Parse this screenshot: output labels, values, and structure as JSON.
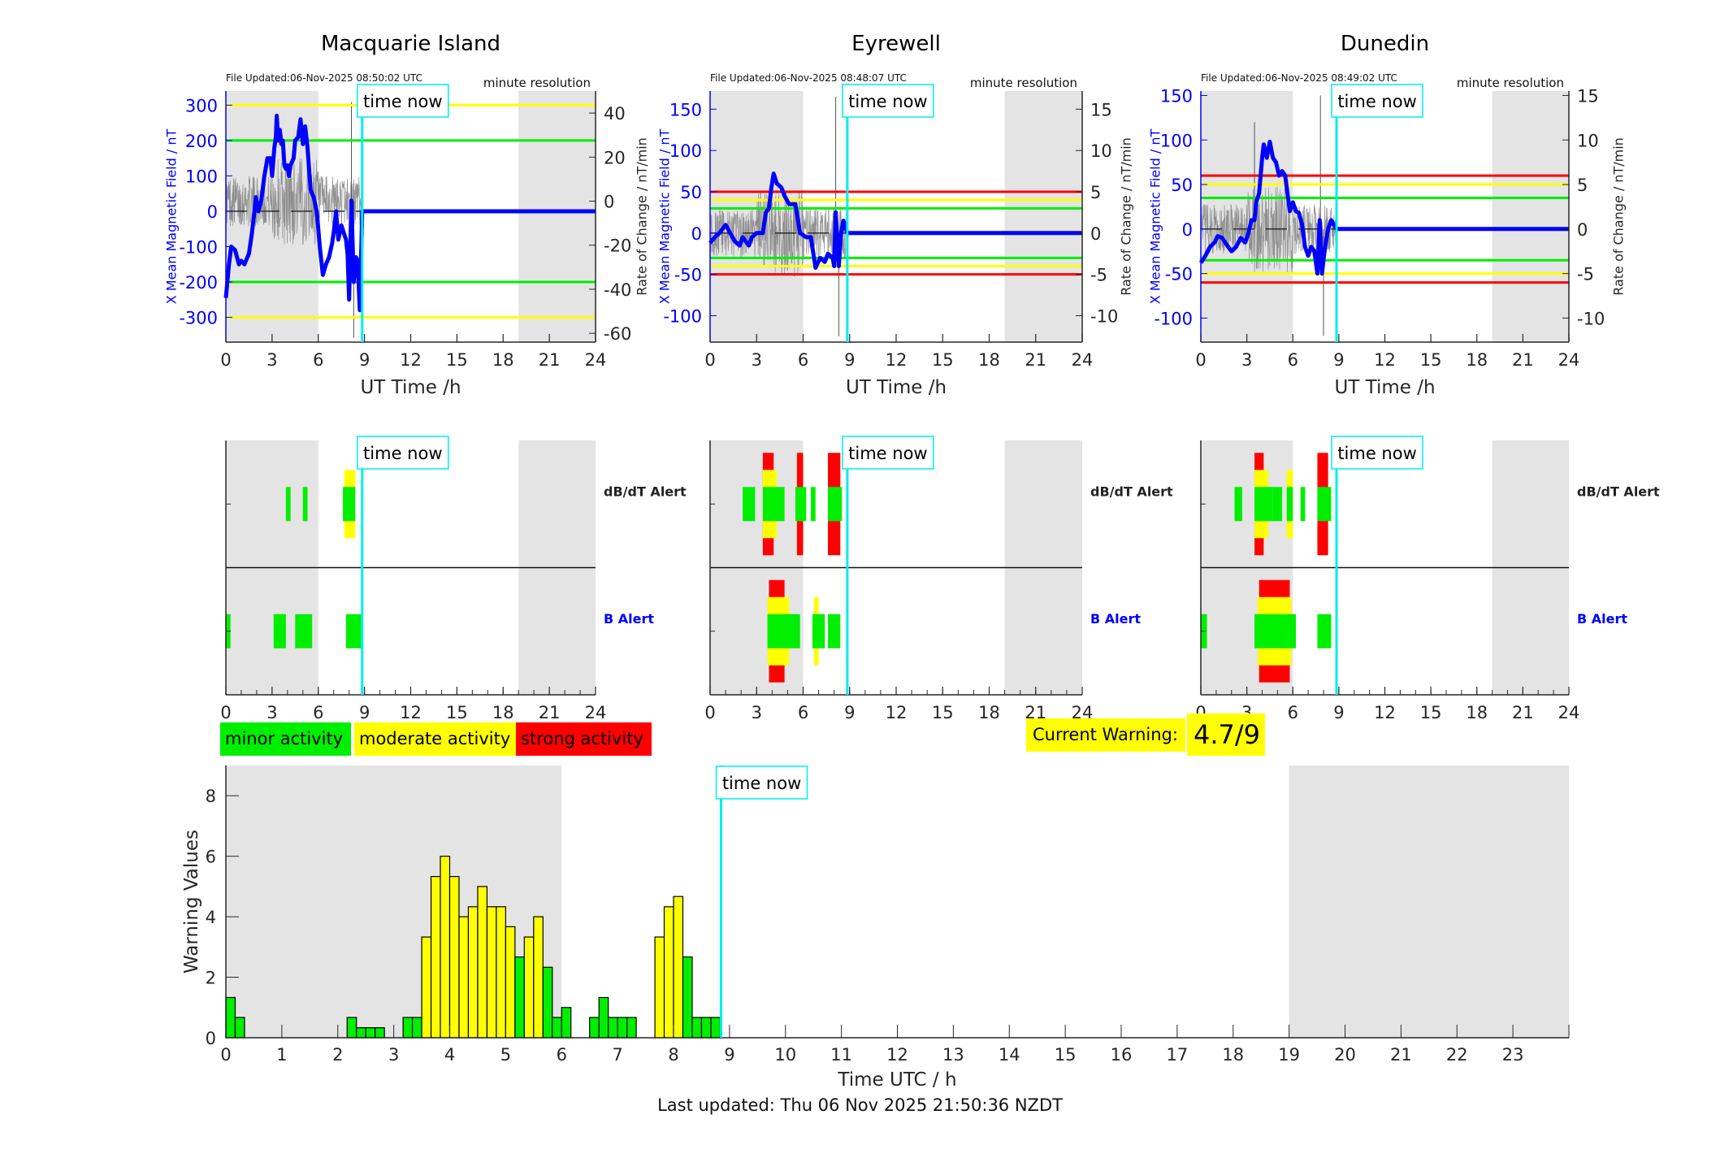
{
  "colors": {
    "field": "#0000ff",
    "minor": "#00ee00",
    "moderate": "#ffff00",
    "strong": "#ff0000",
    "time_now": "#00eeee",
    "night": "#e4e4e4",
    "rate": "#555555"
  },
  "time_now_label": "time now",
  "time_now_hour": 8.85,
  "night_shading_hours": [
    [
      0,
      6
    ],
    [
      19,
      24
    ]
  ],
  "chart_data": [
    {
      "type": "line",
      "id": "macquarie",
      "title": "Macquarie Island",
      "file_updated": "File Updated:06-Nov-2025 08:50:02 UTC",
      "resolution": "minute resolution",
      "xlabel": "UT Time /h",
      "ylabel_left": "X Mean Magnetic Field / nT",
      "ylabel_right": "Rate of Change / nT/min",
      "xlim": [
        0,
        24
      ],
      "xticks": [
        0,
        3,
        6,
        9,
        12,
        15,
        18,
        21,
        24
      ],
      "ylim_left": [
        -370,
        340
      ],
      "yticks_left": [
        -300,
        -200,
        -100,
        0,
        100,
        200,
        300
      ],
      "ylim_right": [
        -64,
        50
      ],
      "yticks_right": [
        -60,
        -40,
        -20,
        0,
        20,
        40
      ],
      "thresholds": [
        {
          "level": "minor",
          "value": 200
        },
        {
          "level": "moderate",
          "value": 300
        }
      ],
      "field_series": [
        [
          0,
          -245
        ],
        [
          0.2,
          -150
        ],
        [
          0.35,
          -100
        ],
        [
          0.6,
          -110
        ],
        [
          0.85,
          -150
        ],
        [
          1.0,
          -140
        ],
        [
          1.2,
          -150
        ],
        [
          1.5,
          -120
        ],
        [
          1.7,
          -60
        ],
        [
          1.85,
          0
        ],
        [
          1.95,
          40
        ],
        [
          2.1,
          0
        ],
        [
          2.3,
          30
        ],
        [
          2.5,
          100
        ],
        [
          2.7,
          150
        ],
        [
          2.9,
          150
        ],
        [
          3.0,
          100
        ],
        [
          3.15,
          180
        ],
        [
          3.25,
          210
        ],
        [
          3.3,
          270
        ],
        [
          3.4,
          200
        ],
        [
          3.5,
          230
        ],
        [
          3.6,
          190
        ],
        [
          3.7,
          200
        ],
        [
          3.8,
          130
        ],
        [
          3.9,
          120
        ],
        [
          4.0,
          130
        ],
        [
          4.1,
          100
        ],
        [
          4.2,
          130
        ],
        [
          4.4,
          150
        ],
        [
          4.5,
          200
        ],
        [
          4.7,
          210
        ],
        [
          4.85,
          260
        ],
        [
          5.0,
          190
        ],
        [
          5.15,
          240
        ],
        [
          5.3,
          180
        ],
        [
          5.5,
          60
        ],
        [
          5.7,
          40
        ],
        [
          5.9,
          0
        ],
        [
          6.1,
          -100
        ],
        [
          6.3,
          -180
        ],
        [
          6.5,
          -150
        ],
        [
          6.7,
          -130
        ],
        [
          6.9,
          -90
        ],
        [
          7.0,
          -60
        ],
        [
          7.15,
          0
        ],
        [
          7.3,
          -80
        ],
        [
          7.5,
          -40
        ],
        [
          7.65,
          -60
        ],
        [
          7.8,
          -80
        ],
        [
          7.9,
          -120
        ],
        [
          8.0,
          -250
        ],
        [
          8.15,
          30
        ],
        [
          8.3,
          -200
        ],
        [
          8.45,
          -130
        ],
        [
          8.55,
          -140
        ],
        [
          8.7,
          -280
        ],
        [
          8.85,
          0
        ],
        [
          24,
          0
        ]
      ],
      "rate_spikes": [
        [
          8.15,
          45
        ],
        [
          8.3,
          -62
        ]
      ],
      "alerts": {
        "dbdt_label": "dB/dT Alert",
        "b_label": "B Alert",
        "dbdt": [
          {
            "start": 3.9,
            "end": 4.2,
            "level": 1
          },
          {
            "start": 5.0,
            "end": 5.3,
            "level": 1
          },
          {
            "start": 7.7,
            "end": 8.4,
            "level": 2
          },
          {
            "start": 7.6,
            "end": 8.4,
            "level": 1
          }
        ],
        "b": [
          {
            "start": 0.0,
            "end": 0.3,
            "level": 1
          },
          {
            "start": 3.1,
            "end": 3.9,
            "level": 1
          },
          {
            "start": 4.5,
            "end": 5.6,
            "level": 1
          },
          {
            "start": 7.8,
            "end": 8.9,
            "level": 1
          }
        ]
      }
    },
    {
      "type": "line",
      "id": "eyrewell",
      "title": "Eyrewell",
      "file_updated": "File Updated:06-Nov-2025 08:48:07 UTC",
      "resolution": "minute resolution",
      "xlabel": "UT Time /h",
      "ylabel_left": "X Mean Magnetic Field / nT",
      "ylabel_right": "Rate of Change / nT/min",
      "xlim": [
        0,
        24
      ],
      "xticks": [
        0,
        3,
        6,
        9,
        12,
        15,
        18,
        21,
        24
      ],
      "ylim_left": [
        -132,
        172
      ],
      "yticks_left": [
        -100,
        -50,
        0,
        50,
        100,
        150
      ],
      "ylim_right": [
        -13.2,
        17.2
      ],
      "yticks_right": [
        -10,
        -5,
        0,
        5,
        10,
        15
      ],
      "thresholds": [
        {
          "level": "minor",
          "value": 30
        },
        {
          "level": "moderate",
          "value": 40
        },
        {
          "level": "strong",
          "value": 50
        }
      ],
      "field_series": [
        [
          0,
          -12
        ],
        [
          0.3,
          -5
        ],
        [
          0.6,
          0
        ],
        [
          1.0,
          10
        ],
        [
          1.3,
          0
        ],
        [
          1.6,
          -10
        ],
        [
          1.9,
          -15
        ],
        [
          2.1,
          -5
        ],
        [
          2.3,
          -10
        ],
        [
          2.5,
          -15
        ],
        [
          2.7,
          -5
        ],
        [
          3.0,
          0
        ],
        [
          3.4,
          0
        ],
        [
          3.6,
          25
        ],
        [
          3.8,
          30
        ],
        [
          3.95,
          55
        ],
        [
          4.1,
          72
        ],
        [
          4.3,
          60
        ],
        [
          4.6,
          55
        ],
        [
          4.8,
          45
        ],
        [
          5.1,
          35
        ],
        [
          5.5,
          35
        ],
        [
          5.8,
          0
        ],
        [
          6.2,
          -5
        ],
        [
          6.5,
          -5
        ],
        [
          6.8,
          -42
        ],
        [
          7.1,
          -30
        ],
        [
          7.4,
          -35
        ],
        [
          7.6,
          -25
        ],
        [
          7.9,
          -30
        ],
        [
          8.0,
          -40
        ],
        [
          8.1,
          25
        ],
        [
          8.3,
          -40
        ],
        [
          8.45,
          0
        ],
        [
          8.6,
          15
        ],
        [
          8.85,
          0
        ],
        [
          24,
          0
        ]
      ],
      "rate_spikes": [
        [
          8.1,
          16.5
        ],
        [
          8.3,
          -12.5
        ]
      ],
      "alerts": {
        "dbdt_label": "dB/dT Alert",
        "b_label": "B Alert",
        "dbdt": [
          {
            "start": 2.1,
            "end": 2.9,
            "level": 1
          },
          {
            "start": 3.4,
            "end": 4.1,
            "level": 3
          },
          {
            "start": 3.4,
            "end": 4.3,
            "level": 2
          },
          {
            "start": 3.4,
            "end": 4.8,
            "level": 1
          },
          {
            "start": 5.6,
            "end": 6.0,
            "level": 3
          },
          {
            "start": 5.5,
            "end": 6.2,
            "level": 1
          },
          {
            "start": 6.5,
            "end": 6.8,
            "level": 1
          },
          {
            "start": 7.6,
            "end": 8.4,
            "level": 3
          },
          {
            "start": 7.6,
            "end": 8.5,
            "level": 1
          }
        ],
        "b": [
          {
            "start": 3.8,
            "end": 4.8,
            "level": 3
          },
          {
            "start": 3.7,
            "end": 5.1,
            "level": 2
          },
          {
            "start": 3.7,
            "end": 5.8,
            "level": 1
          },
          {
            "start": 6.7,
            "end": 7.0,
            "level": 2
          },
          {
            "start": 6.6,
            "end": 7.4,
            "level": 1
          },
          {
            "start": 7.6,
            "end": 8.4,
            "level": 1
          }
        ]
      }
    },
    {
      "type": "line",
      "id": "dunedin",
      "title": "Dunedin",
      "file_updated": "File Updated:06-Nov-2025 08:49:02 UTC",
      "resolution": "minute resolution",
      "xlabel": "UT Time /h",
      "ylabel_left": "X Mean Magnetic Field / nT",
      "ylabel_right": "Rate of Change / nT/min",
      "xlim": [
        0,
        24
      ],
      "xticks": [
        0,
        3,
        6,
        9,
        12,
        15,
        18,
        21,
        24
      ],
      "ylim_left": [
        -127,
        155
      ],
      "yticks_left": [
        -100,
        -50,
        0,
        50,
        100,
        150
      ],
      "ylim_right": [
        -12.7,
        15.5
      ],
      "yticks_right": [
        -10,
        -5,
        0,
        5,
        10,
        15
      ],
      "thresholds": [
        {
          "level": "minor",
          "value": 35
        },
        {
          "level": "moderate",
          "value": 50
        },
        {
          "level": "strong",
          "value": 60
        }
      ],
      "field_series": [
        [
          0,
          -38
        ],
        [
          0.3,
          -30
        ],
        [
          0.6,
          -20
        ],
        [
          0.9,
          -15
        ],
        [
          1.1,
          -8
        ],
        [
          1.4,
          -10
        ],
        [
          1.7,
          -18
        ],
        [
          2.0,
          -25
        ],
        [
          2.3,
          -20
        ],
        [
          2.6,
          -10
        ],
        [
          2.9,
          -15
        ],
        [
          3.1,
          -5
        ],
        [
          3.3,
          10
        ],
        [
          3.5,
          10
        ],
        [
          3.6,
          30
        ],
        [
          3.8,
          40
        ],
        [
          4.0,
          80
        ],
        [
          4.1,
          95
        ],
        [
          4.3,
          80
        ],
        [
          4.5,
          98
        ],
        [
          4.7,
          80
        ],
        [
          4.9,
          75
        ],
        [
          5.1,
          60
        ],
        [
          5.3,
          65
        ],
        [
          5.5,
          60
        ],
        [
          5.8,
          20
        ],
        [
          6.0,
          30
        ],
        [
          6.2,
          20
        ],
        [
          6.4,
          18
        ],
        [
          6.6,
          5
        ],
        [
          6.8,
          -20
        ],
        [
          7.0,
          -30
        ],
        [
          7.2,
          -20
        ],
        [
          7.4,
          -25
        ],
        [
          7.6,
          -50
        ],
        [
          7.75,
          10
        ],
        [
          7.9,
          -50
        ],
        [
          8.1,
          -20
        ],
        [
          8.3,
          0
        ],
        [
          8.5,
          10
        ],
        [
          8.85,
          0
        ],
        [
          24,
          0
        ]
      ],
      "rate_spikes": [
        [
          3.5,
          12
        ],
        [
          7.8,
          15
        ],
        [
          8.0,
          -12
        ]
      ],
      "alerts": {
        "dbdt_label": "dB/dT Alert",
        "b_label": "B Alert",
        "dbdt": [
          {
            "start": 2.2,
            "end": 2.7,
            "level": 1
          },
          {
            "start": 3.5,
            "end": 4.1,
            "level": 3
          },
          {
            "start": 3.5,
            "end": 4.4,
            "level": 2
          },
          {
            "start": 3.5,
            "end": 4.7,
            "level": 1
          },
          {
            "start": 4.7,
            "end": 5.3,
            "level": 1
          },
          {
            "start": 5.6,
            "end": 6.0,
            "level": 2
          },
          {
            "start": 5.6,
            "end": 6.0,
            "level": 1
          },
          {
            "start": 6.5,
            "end": 6.8,
            "level": 1
          },
          {
            "start": 7.6,
            "end": 8.3,
            "level": 3
          },
          {
            "start": 7.6,
            "end": 8.5,
            "level": 1
          }
        ],
        "b": [
          {
            "start": 0.0,
            "end": 0.4,
            "level": 1
          },
          {
            "start": 3.8,
            "end": 5.8,
            "level": 3
          },
          {
            "start": 3.7,
            "end": 5.9,
            "level": 2
          },
          {
            "start": 3.5,
            "end": 6.2,
            "level": 1
          },
          {
            "start": 7.6,
            "end": 8.5,
            "level": 1
          }
        ]
      }
    },
    {
      "type": "bar",
      "id": "warning",
      "title": "",
      "xlabel": "Time UTC / h",
      "ylabel": "Warning Values",
      "xlim": [
        0,
        24
      ],
      "xticks": [
        0,
        1,
        2,
        3,
        4,
        5,
        6,
        7,
        8,
        9,
        10,
        11,
        12,
        13,
        14,
        15,
        16,
        17,
        18,
        19,
        20,
        21,
        22,
        23
      ],
      "ylim": [
        0,
        9
      ],
      "yticks": [
        0,
        2,
        4,
        6,
        8
      ],
      "bin_width_h": 0.1667,
      "bars": [
        {
          "x": 0.0,
          "value": 1.33,
          "level": "minor"
        },
        {
          "x": 0.167,
          "value": 0.67,
          "level": "minor"
        },
        {
          "x": 2.167,
          "value": 0.67,
          "level": "minor"
        },
        {
          "x": 2.333,
          "value": 0.33,
          "level": "minor"
        },
        {
          "x": 2.5,
          "value": 0.33,
          "level": "minor"
        },
        {
          "x": 2.667,
          "value": 0.33,
          "level": "minor"
        },
        {
          "x": 3.167,
          "value": 0.67,
          "level": "minor"
        },
        {
          "x": 3.333,
          "value": 0.67,
          "level": "minor"
        },
        {
          "x": 3.5,
          "value": 3.33,
          "level": "moderate"
        },
        {
          "x": 3.667,
          "value": 5.33,
          "level": "moderate"
        },
        {
          "x": 3.833,
          "value": 6.0,
          "level": "moderate"
        },
        {
          "x": 4.0,
          "value": 5.33,
          "level": "moderate"
        },
        {
          "x": 4.167,
          "value": 4.0,
          "level": "moderate"
        },
        {
          "x": 4.333,
          "value": 4.33,
          "level": "moderate"
        },
        {
          "x": 4.5,
          "value": 5.0,
          "level": "moderate"
        },
        {
          "x": 4.667,
          "value": 4.33,
          "level": "moderate"
        },
        {
          "x": 4.833,
          "value": 4.33,
          "level": "moderate"
        },
        {
          "x": 5.0,
          "value": 3.67,
          "level": "moderate"
        },
        {
          "x": 5.167,
          "value": 2.67,
          "level": "minor"
        },
        {
          "x": 5.333,
          "value": 3.33,
          "level": "moderate"
        },
        {
          "x": 5.5,
          "value": 4.0,
          "level": "moderate"
        },
        {
          "x": 5.667,
          "value": 2.33,
          "level": "minor"
        },
        {
          "x": 5.833,
          "value": 0.67,
          "level": "minor"
        },
        {
          "x": 6.0,
          "value": 1.0,
          "level": "minor"
        },
        {
          "x": 6.5,
          "value": 0.67,
          "level": "minor"
        },
        {
          "x": 6.667,
          "value": 1.33,
          "level": "minor"
        },
        {
          "x": 6.833,
          "value": 0.67,
          "level": "minor"
        },
        {
          "x": 7.0,
          "value": 0.67,
          "level": "minor"
        },
        {
          "x": 7.167,
          "value": 0.67,
          "level": "minor"
        },
        {
          "x": 7.667,
          "value": 3.33,
          "level": "moderate"
        },
        {
          "x": 7.833,
          "value": 4.33,
          "level": "moderate"
        },
        {
          "x": 8.0,
          "value": 4.67,
          "level": "moderate"
        },
        {
          "x": 8.167,
          "value": 2.67,
          "level": "minor"
        },
        {
          "x": 8.333,
          "value": 0.67,
          "level": "minor"
        },
        {
          "x": 8.5,
          "value": 0.67,
          "level": "minor"
        },
        {
          "x": 8.667,
          "value": 0.67,
          "level": "minor"
        }
      ]
    }
  ],
  "legend": {
    "minor": "minor activity",
    "moderate": "moderate activity",
    "strong": "strong activity"
  },
  "current_warning": {
    "label": "Current Warning:",
    "value": "4.7/9"
  },
  "footer": {
    "last_updated": "Last updated: Thu 06 Nov 2025 21:50:36 NZDT"
  }
}
